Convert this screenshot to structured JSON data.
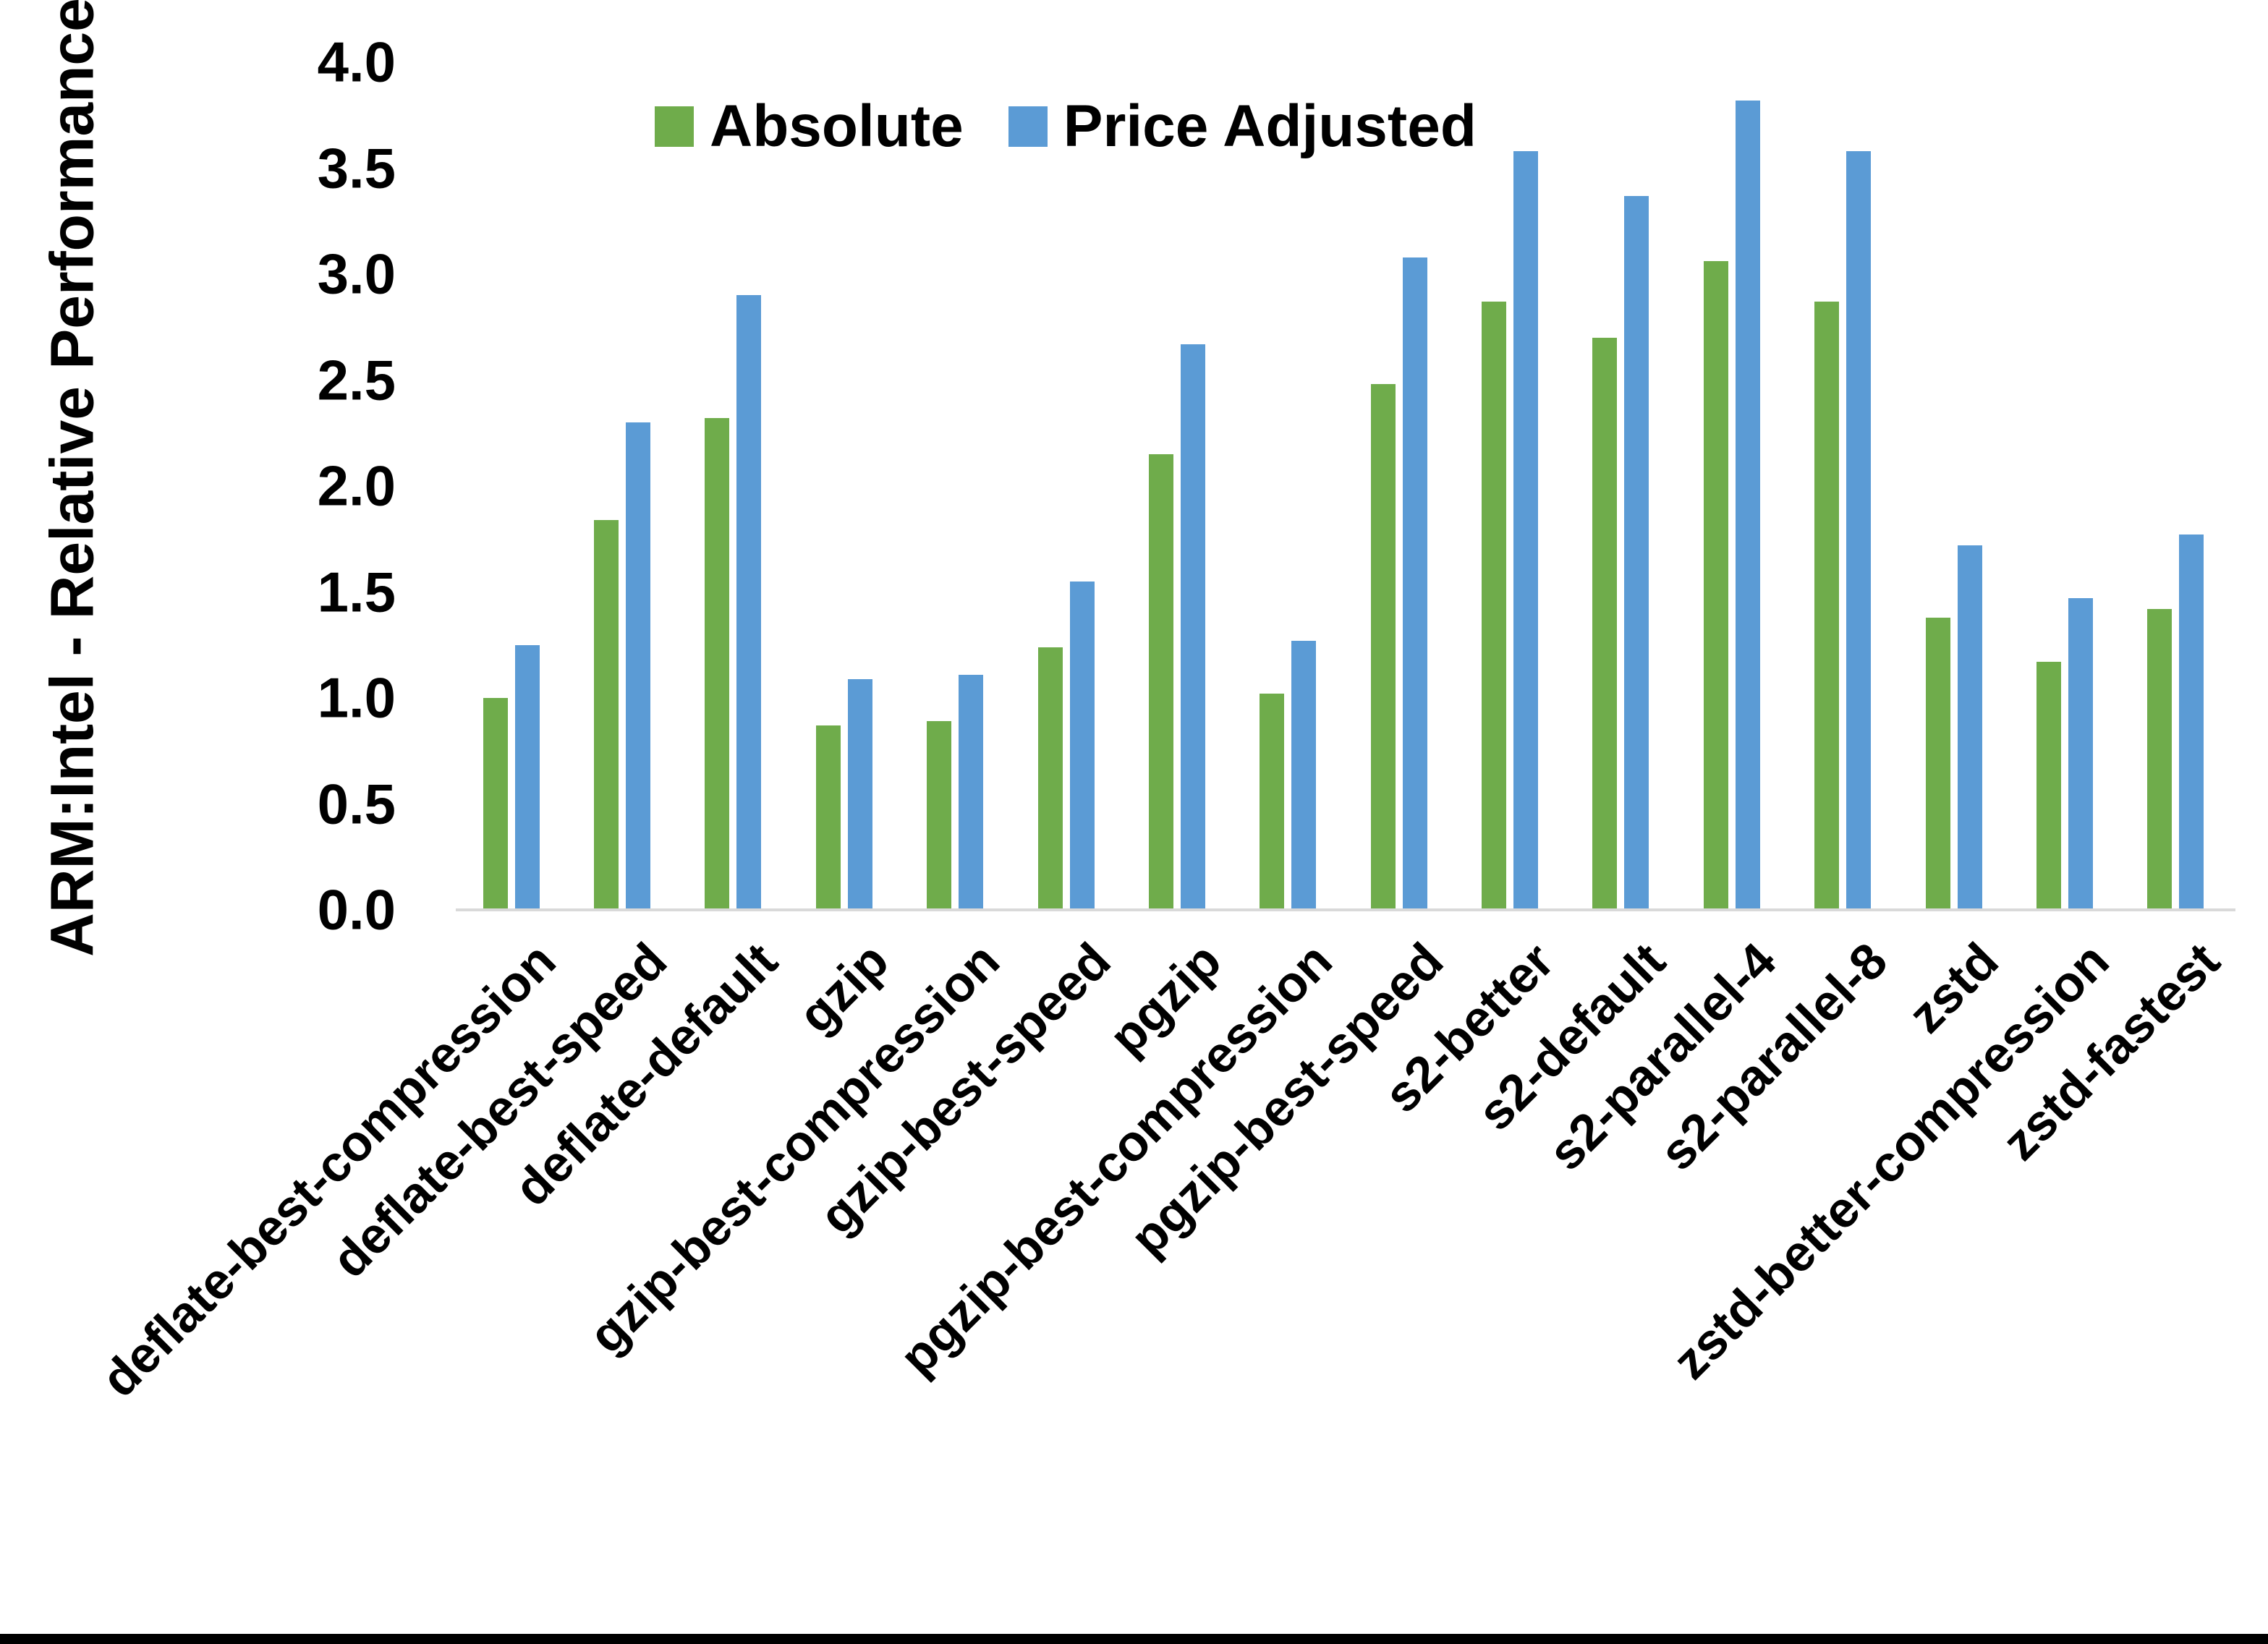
{
  "chart_data": {
    "type": "bar",
    "title": "",
    "xlabel": "",
    "ylabel": "ARM:Intel - Relative Performance",
    "ylim": [
      0.0,
      4.0
    ],
    "ytick_step": 0.5,
    "yticks": [
      "4.0",
      "3.5",
      "3.0",
      "2.5",
      "2.0",
      "1.5",
      "1.0",
      "0.5",
      "0.0"
    ],
    "grid": false,
    "legend_position": "top-center",
    "categories": [
      "deflate-best-compression",
      "deflate-best-speed",
      "deflate-default",
      "gzip",
      "gzip-best-compression",
      "gzip-best-speed",
      "pgzip",
      "pgzip-best-compression",
      "pgzip-best-speed",
      "s2-better",
      "s2-default",
      "s2-parallel-4",
      "s2-parallel-8",
      "zstd",
      "zstd-better-compression",
      "zstd-fastest"
    ],
    "series": [
      {
        "name": "Absolute",
        "color": "#6FAC4B",
        "values": [
          1.0,
          1.84,
          2.32,
          0.87,
          0.89,
          1.24,
          2.15,
          1.02,
          2.48,
          2.87,
          2.7,
          3.06,
          2.87,
          1.38,
          1.17,
          1.42
        ]
      },
      {
        "name": "Price Adjusted",
        "color": "#5B9BD5",
        "values": [
          1.25,
          2.3,
          2.9,
          1.09,
          1.11,
          1.55,
          2.67,
          1.27,
          3.08,
          3.58,
          3.37,
          3.82,
          3.58,
          1.72,
          1.47,
          1.77
        ]
      }
    ]
  },
  "colors": {
    "background": "#FFFFFF",
    "axis_line": "#D9D9D9",
    "text": "#000000",
    "bottom_border": "#000000"
  }
}
